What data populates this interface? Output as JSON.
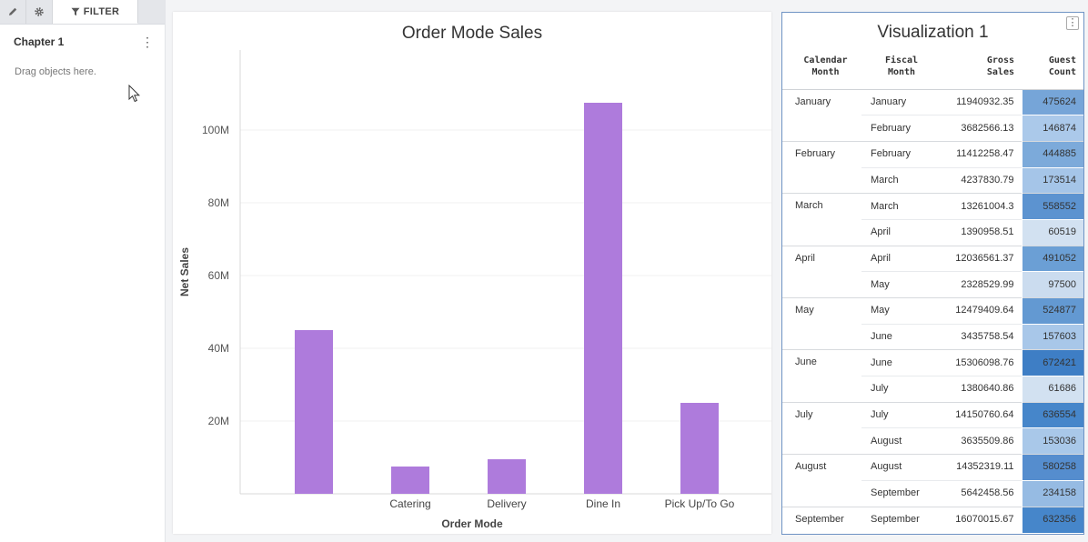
{
  "left_panel": {
    "tabs": [
      {
        "name": "pencil-icon"
      },
      {
        "name": "gear-icon"
      }
    ],
    "filter_tab_label": "FILTER",
    "chapter_title": "Chapter 1",
    "drop_hint": "Drag objects here."
  },
  "chart_data": {
    "type": "bar",
    "title": "Order Mode Sales",
    "xlabel": "Order Mode",
    "ylabel": "Net Sales",
    "categories": [
      "",
      "Catering",
      "Delivery",
      "Dine In",
      "Pick Up/To  Go"
    ],
    "values": [
      45000000,
      7500000,
      9500000,
      107500000,
      25000000
    ],
    "ylim": [
      0,
      122000000
    ],
    "yticks": [
      20000000,
      40000000,
      60000000,
      80000000,
      100000000
    ],
    "ytick_labels": [
      "20M",
      "40M",
      "60M",
      "80M",
      "100M"
    ],
    "bar_color": "#ae7bdc",
    "grid": true
  },
  "table": {
    "title": "Visualization 1",
    "menu_label": "⋮",
    "headers": {
      "calendar": [
        "Calendar",
        "Month"
      ],
      "fiscal": [
        "Fiscal",
        "Month"
      ],
      "gross": [
        "Gross",
        "Sales"
      ],
      "guest": [
        "Guest",
        "Count"
      ]
    },
    "groups": [
      {
        "month": "January",
        "rows": [
          {
            "fiscal": "January",
            "gross": "11940932.35",
            "guest": "475624",
            "color": "#76a5d8"
          },
          {
            "fiscal": "February",
            "gross": "3682566.13",
            "guest": "146874",
            "color": "#abc9ea"
          }
        ]
      },
      {
        "month": "February",
        "rows": [
          {
            "fiscal": "February",
            "gross": "11412258.47",
            "guest": "444885",
            "color": "#7caada"
          },
          {
            "fiscal": "March",
            "gross": "4237830.79",
            "guest": "173514",
            "color": "#a5c5e8"
          }
        ]
      },
      {
        "month": "March",
        "rows": [
          {
            "fiscal": "March",
            "gross": "13261004.3",
            "guest": "558552",
            "color": "#5c93d0"
          },
          {
            "fiscal": "April",
            "gross": "1390958.51",
            "guest": "60519",
            "color": "#d2e1f1"
          }
        ]
      },
      {
        "month": "April",
        "rows": [
          {
            "fiscal": "April",
            "gross": "12036561.37",
            "guest": "491052",
            "color": "#6b9fd5"
          },
          {
            "fiscal": "May",
            "gross": "2328529.99",
            "guest": "97500",
            "color": "#cbdcef"
          }
        ]
      },
      {
        "month": "May",
        "rows": [
          {
            "fiscal": "May",
            "gross": "12479409.64",
            "guest": "524877",
            "color": "#6399d2"
          },
          {
            "fiscal": "June",
            "gross": "3435758.54",
            "guest": "157603",
            "color": "#a8c7e9"
          }
        ]
      },
      {
        "month": "June",
        "rows": [
          {
            "fiscal": "June",
            "gross": "15306098.76",
            "guest": "672421",
            "color": "#3e7ec5"
          },
          {
            "fiscal": "July",
            "gross": "1380640.86",
            "guest": "61686",
            "color": "#d2e1f1"
          }
        ]
      },
      {
        "month": "July",
        "rows": [
          {
            "fiscal": "July",
            "gross": "14150760.64",
            "guest": "636554",
            "color": "#4686ca"
          },
          {
            "fiscal": "August",
            "gross": "3635509.86",
            "guest": "153036",
            "color": "#a9c8e9"
          }
        ]
      },
      {
        "month": "August",
        "rows": [
          {
            "fiscal": "August",
            "gross": "14352319.11",
            "guest": "580258",
            "color": "#558dce"
          },
          {
            "fiscal": "September",
            "gross": "5642458.56",
            "guest": "234158",
            "color": "#96bbe3"
          }
        ]
      },
      {
        "month": "September",
        "rows": [
          {
            "fiscal": "September",
            "gross": "16070015.67",
            "guest": "632356",
            "color": "#4686ca"
          }
        ]
      }
    ]
  }
}
